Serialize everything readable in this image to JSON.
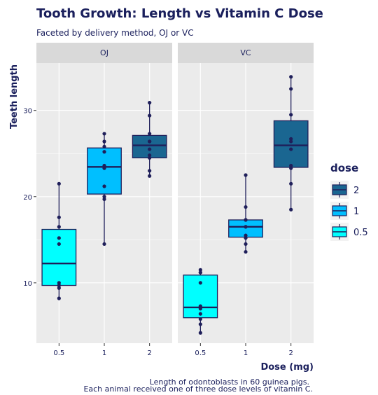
{
  "chart_data": {
    "type": "boxplot",
    "title": "Tooth Growth:  Length vs Vitamin C Dose",
    "subtitle": "Faceted by delivery method, OJ or VC",
    "xlabel": "Dose (mg)",
    "ylabel": "Teeth length",
    "caption_lines": [
      "Length of odontoblasts in 60 guinea pigs.",
      "Each animal received one of three dose levels of vitamin C."
    ],
    "ylim": [
      3.0,
      35.5
    ],
    "yticks": [
      10,
      20,
      30
    ],
    "categories": [
      "0.5",
      "1",
      "2"
    ],
    "legend": {
      "title": "dose",
      "position": "right",
      "entries": [
        {
          "label": "2",
          "color": "#1a6691"
        },
        {
          "label": "1",
          "color": "#00bfff"
        },
        {
          "label": "0.5",
          "color": "#00ffff"
        }
      ]
    },
    "grid": true,
    "panel_background": "#ebebeb",
    "strip_background": "#d9d9d9",
    "outline_color": "#1f1f5a",
    "point_color": "#1f1f5a",
    "facets": [
      {
        "label": "OJ",
        "groups": [
          {
            "dose": "0.5",
            "color": "#00ffff",
            "stats": {
              "min": 8.2,
              "q1": 9.7,
              "median": 12.25,
              "q3": 16.2,
              "max": 21.5
            },
            "points": [
              15.2,
              21.5,
              17.6,
              9.7,
              14.5,
              10.0,
              8.2,
              9.4,
              16.5,
              9.7
            ]
          },
          {
            "dose": "1",
            "color": "#00bfff",
            "stats": {
              "min": 14.5,
              "q1": 20.3,
              "median": 23.45,
              "q3": 25.65,
              "max": 27.3
            },
            "points": [
              19.7,
              23.3,
              23.6,
              26.4,
              20.0,
              25.2,
              25.8,
              21.2,
              14.5,
              27.3
            ]
          },
          {
            "dose": "2",
            "color": "#1a6691",
            "stats": {
              "min": 22.4,
              "q1": 24.5,
              "median": 25.95,
              "q3": 27.1,
              "max": 30.9
            },
            "points": [
              25.5,
              26.4,
              22.4,
              24.5,
              24.8,
              30.9,
              26.4,
              27.3,
              29.4,
              23.0
            ]
          }
        ]
      },
      {
        "label": "VC",
        "groups": [
          {
            "dose": "0.5",
            "color": "#00ffff",
            "stats": {
              "min": 4.2,
              "q1": 5.95,
              "median": 7.15,
              "q3": 10.9,
              "max": 11.5
            },
            "points": [
              4.2,
              11.5,
              7.3,
              5.8,
              6.4,
              10.0,
              11.2,
              11.2,
              5.2,
              7.0
            ]
          },
          {
            "dose": "1",
            "color": "#00bfff",
            "stats": {
              "min": 13.6,
              "q1": 15.3,
              "median": 16.5,
              "q3": 17.3,
              "max": 22.5
            },
            "points": [
              16.5,
              16.5,
              15.2,
              17.3,
              22.5,
              17.3,
              13.6,
              14.5,
              18.8,
              15.5
            ]
          },
          {
            "dose": "2",
            "color": "#1a6691",
            "stats": {
              "min": 18.5,
              "q1": 23.4,
              "median": 25.95,
              "q3": 28.8,
              "max": 33.9
            },
            "points": [
              23.6,
              18.5,
              33.9,
              25.5,
              26.4,
              32.5,
              26.7,
              21.5,
              23.3,
              29.5
            ]
          }
        ]
      }
    ]
  }
}
